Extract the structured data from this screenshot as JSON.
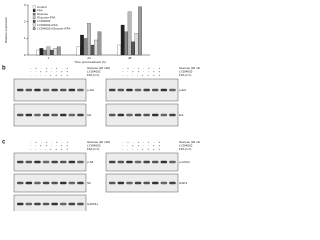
{
  "chart_data": {
    "type": "bar",
    "y_label": "Relative expression",
    "x_label": "Time post-treatment (h)",
    "categories": [
      "1",
      "24",
      "48"
    ],
    "series": [
      {
        "name": "Control",
        "color": "#ffffff",
        "values": [
          0.3,
          0.5,
          0.6
        ]
      },
      {
        "name": "FFA",
        "color": "#222222",
        "values": [
          0.4,
          1.2,
          1.8
        ]
      },
      {
        "name": "Glucose",
        "color": "#888888",
        "values": [
          0.3,
          1.0,
          1.4
        ]
      },
      {
        "name": "Glucose+FFA",
        "color": "#bbbbbb",
        "values": [
          0.5,
          1.9,
          2.6
        ]
      },
      {
        "name": "LY294002",
        "color": "#555555",
        "values": [
          0.3,
          0.6,
          0.8
        ]
      },
      {
        "name": "LY294002+FFA",
        "color": "#dddddd",
        "values": [
          0.4,
          0.9,
          1.3
        ]
      },
      {
        "name": "LY294002+Glucose+FFA",
        "color": "#999999",
        "values": [
          0.5,
          1.4,
          2.9
        ]
      }
    ],
    "ylim": [
      0,
      3
    ],
    "yticks": [
      0,
      1,
      2,
      3
    ]
  },
  "panels": [
    {
      "label": "b",
      "blots": [
        {
          "conditions": [
            {
              "name": "Glucose (20 mM)",
              "signs": "- + - + - + - +"
            },
            {
              "name": "LY294002",
              "signs": "- - + + - - + +"
            },
            {
              "name": "FFA (1 h)",
              "signs": "- - - - + + + +"
            }
          ],
          "strips": [
            "p-Akt",
            "Akt"
          ]
        },
        {
          "conditions": [
            {
              "name": "Glucose (20 mM)",
              "signs": "- + - + - + - +"
            },
            {
              "name": "LY294002",
              "signs": "- - + + - - + +"
            },
            {
              "name": "FFA (1 h)",
              "signs": "- - - - + + + +"
            }
          ],
          "strips": [
            "p-Erk",
            "Erk"
          ]
        }
      ]
    },
    {
      "label": "c",
      "blots": [
        {
          "conditions": [
            {
              "name": "Glucose (20 mM)",
              "signs": "- + - + - + - +"
            },
            {
              "name": "LY294002",
              "signs": "- - + + - - + +"
            },
            {
              "name": "FFA (1 h)",
              "signs": "- - - - + + + +"
            }
          ],
          "strips": [
            "p-S6",
            "S6",
            "GAPDH"
          ]
        },
        {
          "conditions": [
            {
              "name": "Glucose (20 mM)",
              "signs": "- + - + - + - +"
            },
            {
              "name": "LY294002",
              "signs": "- - + + - - + +"
            },
            {
              "name": "FFA (1 h)",
              "signs": "- - - - + + + +"
            }
          ],
          "strips": [
            "p-GSK3",
            "GSK3"
          ]
        }
      ]
    }
  ]
}
